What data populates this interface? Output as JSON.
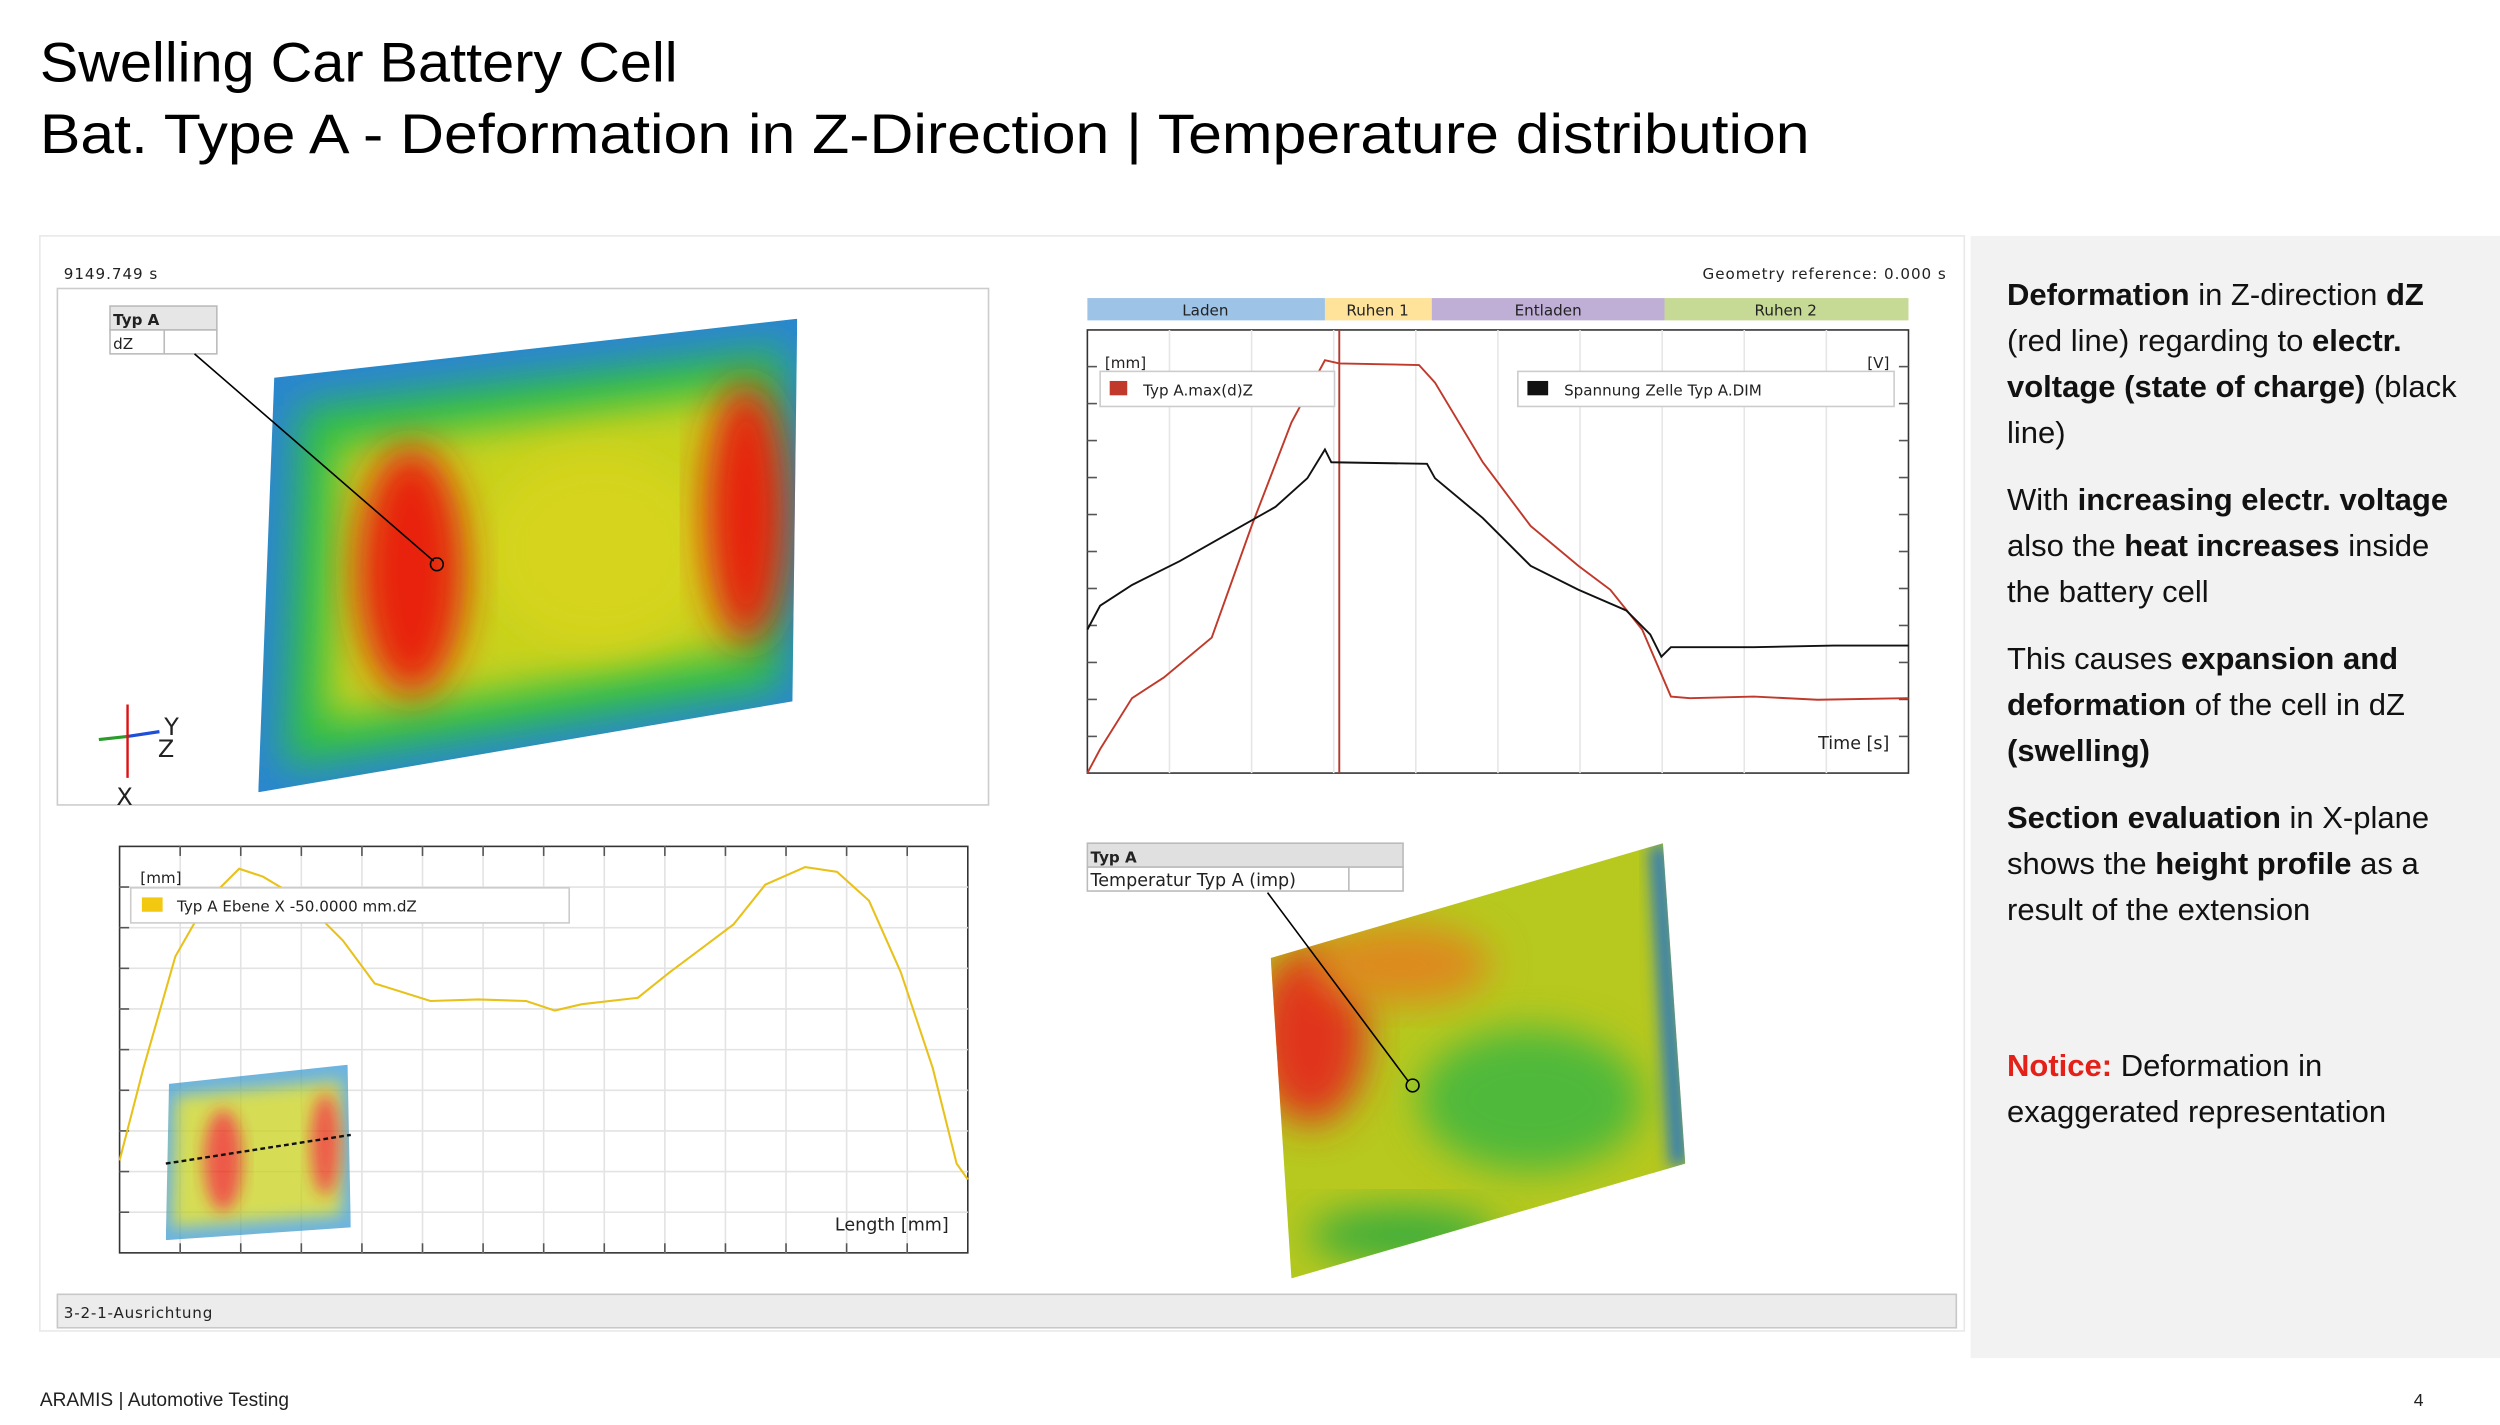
{
  "header": {
    "title": "Swelling Car Battery Cell",
    "subtitle": "Bat. Type A - Deformation in Z-Direction | Temperature distribution"
  },
  "viewer": {
    "time": "9149.749 s",
    "geometry_reference": "Geometry reference: 0.000 s",
    "status": "3-2-1-Ausrichtung"
  },
  "deformation_view": {
    "label_title": "Typ A",
    "label_value": "dZ",
    "axes": [
      "Y",
      "Z",
      "X"
    ]
  },
  "voltage_chart": {
    "phases": [
      "Laden",
      "Ruhen 1",
      "Entladen",
      "Ruhen 2"
    ],
    "y_unit": "[mm]",
    "y2_unit": "[V]",
    "legend": [
      "Typ A.max(d)Z",
      "Spannung Zelle Typ A.DIM"
    ],
    "x_label": "Time [s]"
  },
  "section_chart": {
    "y_unit": "[mm]",
    "legend": "Typ A Ebene X -50.0000 mm.dZ",
    "x_label": "Length [mm]"
  },
  "temperature_view": {
    "label_title": "Typ A",
    "label_value": "Temperatur Typ A (imp)"
  },
  "sidebar": {
    "paragraphs": [
      {
        "runs": [
          {
            "text": "Deformation",
            "style": "bold"
          },
          {
            "text": " in Z-direction "
          },
          {
            "text": "dZ",
            "style": "bold"
          },
          {
            "text": " (red line) regarding to "
          },
          {
            "text": "electr. voltage (state of charge)",
            "style": "bold"
          },
          {
            "text": " (black line)"
          }
        ]
      },
      {
        "runs": [
          {
            "text": "With "
          },
          {
            "text": "increasing electr. voltage",
            "style": "bold"
          },
          {
            "text": " also the "
          },
          {
            "text": "heat increases",
            "style": "bold"
          },
          {
            "text": " inside the battery cell"
          }
        ]
      },
      {
        "runs": [
          {
            "text": "This causes "
          },
          {
            "text": "expansion and deformation",
            "style": "bold"
          },
          {
            "text": " of the cell in dZ "
          },
          {
            "text": "(swelling)",
            "style": "bold"
          }
        ]
      },
      {
        "runs": [
          {
            "text": "Section evaluation",
            "style": "bold"
          },
          {
            "text": " in X-plane shows the "
          },
          {
            "text": "height profile",
            "style": "bold"
          },
          {
            "text": " as a result of the extension"
          }
        ]
      },
      {
        "runs": [
          {
            "text": "Notice:",
            "style": "notice"
          },
          {
            "text": " Deformation in exaggerated representation"
          }
        ]
      }
    ]
  },
  "footer": {
    "text": "ARAMIS | Automotive Testing",
    "page": "4"
  }
}
